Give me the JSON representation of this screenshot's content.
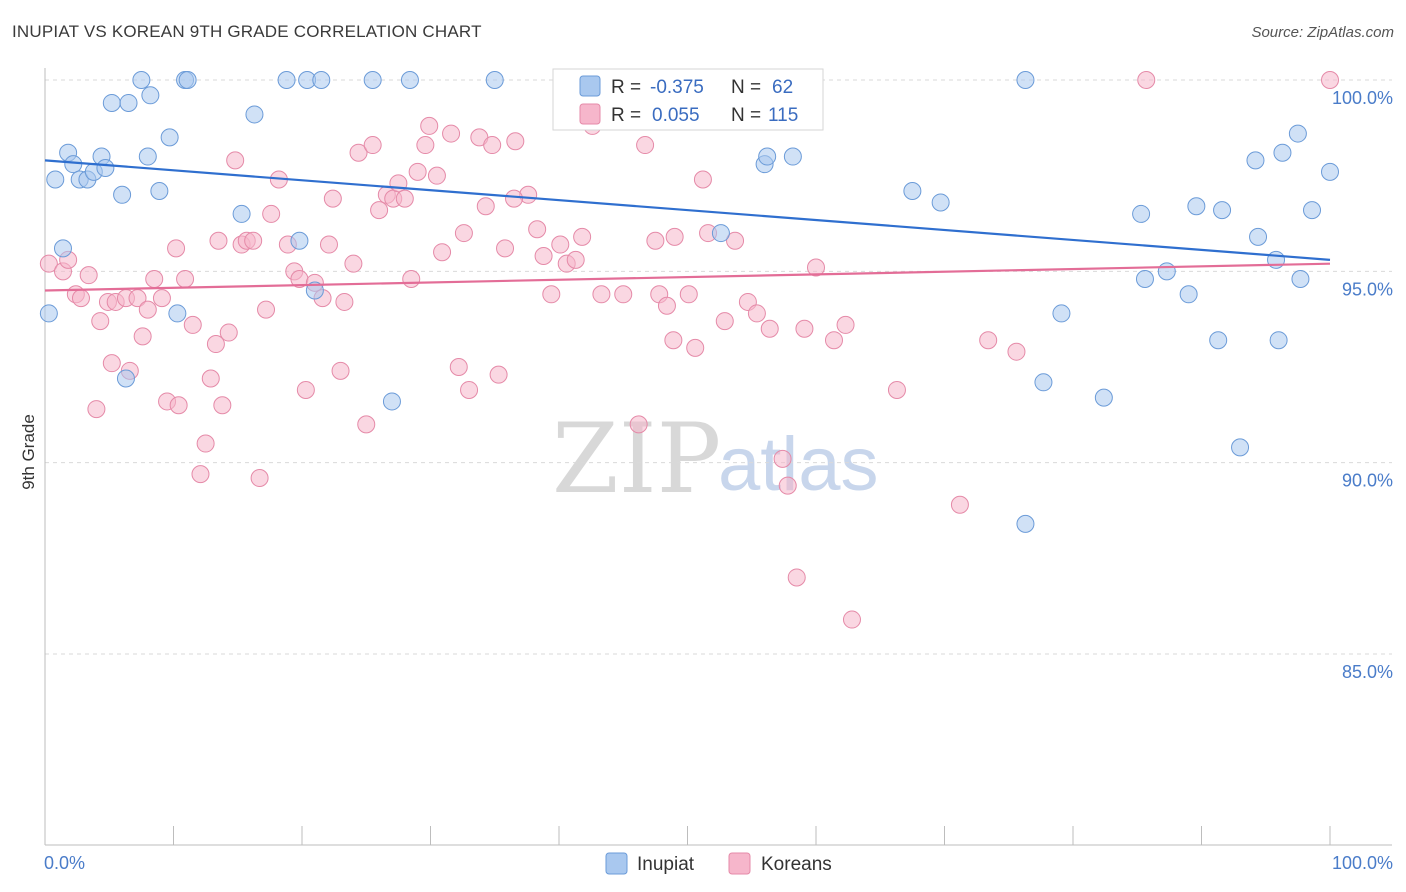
{
  "title": "INUPIAT VS KOREAN 9TH GRADE CORRELATION CHART",
  "source": "Source: ZipAtlas.com",
  "watermark": {
    "zip": "ZIP",
    "atlas": "atlas"
  },
  "legend_box": {
    "rows": [
      {
        "series": "Inupiat",
        "r_label": "R =",
        "r_value": "-0.375",
        "n_label": "N =",
        "n_value": "62",
        "color": "#a9c8ef"
      },
      {
        "series": "Koreans",
        "r_label": "R =",
        "r_value": "0.055",
        "n_label": "N =",
        "n_value": "115",
        "color": "#f6b6cb"
      }
    ]
  },
  "colors": {
    "inupiat_fill": "#a9c8ef",
    "inupiat_stroke": "#6b9bd8",
    "inupiat_line": "#2f6fcf",
    "koreans_fill": "#f6b6cb",
    "koreans_stroke": "#e58aa8",
    "koreans_line": "#e36d97",
    "grid": "#d9d9d9",
    "tick_label": "#4a7cc9"
  },
  "chart_data": {
    "type": "scatter",
    "title": "INUPIAT VS KOREAN 9TH GRADE CORRELATION CHART",
    "xlabel": "",
    "ylabel": "9th Grade",
    "xlim": [
      0,
      100
    ],
    "ylim": [
      80.5,
      100.9
    ],
    "x_tick_labels": [
      {
        "value": 0,
        "label": "0.0%"
      },
      {
        "value": 100,
        "label": "100.0%"
      }
    ],
    "y_tick_labels": [
      {
        "value": 100,
        "label": "100.0%"
      },
      {
        "value": 95,
        "label": "95.0%"
      },
      {
        "value": 90,
        "label": "90.0%"
      },
      {
        "value": 85,
        "label": "85.0%"
      }
    ],
    "grid": true,
    "legend_position": "bottom",
    "series": [
      {
        "name": "Inupiat",
        "trend": {
          "x": [
            0,
            100
          ],
          "y": [
            97.9,
            95.3
          ]
        },
        "points": [
          [
            0.3,
            93.9
          ],
          [
            0.8,
            97.4
          ],
          [
            1.4,
            95.6
          ],
          [
            1.8,
            98.1
          ],
          [
            2.2,
            97.8
          ],
          [
            2.7,
            97.4
          ],
          [
            3.3,
            97.4
          ],
          [
            3.8,
            97.6
          ],
          [
            4.4,
            98.0
          ],
          [
            4.7,
            97.7
          ],
          [
            5.2,
            99.4
          ],
          [
            6.0,
            97.0
          ],
          [
            6.5,
            99.4
          ],
          [
            7.5,
            100.0
          ],
          [
            8.0,
            98.0
          ],
          [
            8.2,
            99.6
          ],
          [
            8.9,
            97.1
          ],
          [
            9.7,
            98.5
          ],
          [
            10.3,
            93.9
          ],
          [
            10.9,
            100.0
          ],
          [
            11.1,
            100.0
          ],
          [
            6.3,
            92.2
          ],
          [
            16.3,
            99.1
          ],
          [
            15.3,
            96.5
          ],
          [
            18.8,
            100.0
          ],
          [
            19.8,
            95.8
          ],
          [
            20.4,
            100.0
          ],
          [
            21.5,
            100.0
          ],
          [
            21.0,
            94.5
          ],
          [
            25.5,
            100.0
          ],
          [
            27.0,
            91.6
          ],
          [
            28.4,
            100.0
          ],
          [
            35.0,
            100.0
          ],
          [
            47.5,
            100.0
          ],
          [
            52.6,
            96.0
          ],
          [
            56.0,
            97.8
          ],
          [
            56.2,
            98.0
          ],
          [
            58.2,
            98.0
          ],
          [
            67.5,
            97.1
          ],
          [
            69.7,
            96.8
          ],
          [
            76.3,
            88.4
          ],
          [
            76.3,
            100.0
          ],
          [
            77.7,
            92.1
          ],
          [
            79.1,
            93.9
          ],
          [
            82.4,
            91.7
          ],
          [
            85.3,
            96.5
          ],
          [
            85.6,
            94.8
          ],
          [
            87.3,
            95.0
          ],
          [
            89.0,
            94.4
          ],
          [
            89.6,
            96.7
          ],
          [
            91.3,
            93.2
          ],
          [
            91.6,
            96.6
          ],
          [
            93.0,
            90.4
          ],
          [
            94.4,
            95.9
          ],
          [
            96.3,
            98.1
          ],
          [
            94.2,
            97.9
          ],
          [
            95.8,
            95.3
          ],
          [
            96.0,
            93.2
          ],
          [
            97.5,
            98.6
          ],
          [
            97.7,
            94.8
          ],
          [
            98.6,
            96.6
          ],
          [
            100.0,
            97.6
          ]
        ]
      },
      {
        "name": "Koreans",
        "trend": {
          "x": [
            0,
            100
          ],
          "y": [
            94.5,
            95.2
          ]
        },
        "points": [
          [
            0.3,
            95.2
          ],
          [
            1.4,
            95.0
          ],
          [
            1.8,
            95.3
          ],
          [
            2.4,
            94.4
          ],
          [
            2.8,
            94.3
          ],
          [
            3.4,
            94.9
          ],
          [
            4.0,
            91.4
          ],
          [
            4.3,
            93.7
          ],
          [
            4.9,
            94.2
          ],
          [
            5.2,
            92.6
          ],
          [
            5.5,
            94.2
          ],
          [
            6.3,
            94.3
          ],
          [
            6.6,
            92.4
          ],
          [
            7.2,
            94.3
          ],
          [
            7.6,
            93.3
          ],
          [
            8.0,
            94.0
          ],
          [
            8.5,
            94.8
          ],
          [
            9.1,
            94.3
          ],
          [
            9.5,
            91.6
          ],
          [
            10.2,
            95.6
          ],
          [
            10.4,
            91.5
          ],
          [
            10.9,
            94.8
          ],
          [
            11.5,
            93.6
          ],
          [
            12.1,
            89.7
          ],
          [
            12.5,
            90.5
          ],
          [
            12.9,
            92.2
          ],
          [
            13.3,
            93.1
          ],
          [
            13.8,
            91.5
          ],
          [
            14.3,
            93.4
          ],
          [
            14.8,
            97.9
          ],
          [
            15.3,
            95.7
          ],
          [
            15.7,
            95.8
          ],
          [
            16.2,
            95.8
          ],
          [
            16.7,
            89.6
          ],
          [
            17.2,
            94.0
          ],
          [
            17.6,
            96.5
          ],
          [
            18.2,
            97.4
          ],
          [
            18.9,
            95.7
          ],
          [
            19.4,
            95.0
          ],
          [
            19.8,
            94.8
          ],
          [
            20.3,
            91.9
          ],
          [
            21.0,
            94.7
          ],
          [
            21.6,
            94.3
          ],
          [
            22.4,
            96.9
          ],
          [
            23.0,
            92.4
          ],
          [
            23.3,
            94.2
          ],
          [
            24.0,
            95.2
          ],
          [
            24.4,
            98.1
          ],
          [
            25.0,
            91.0
          ],
          [
            25.5,
            98.3
          ],
          [
            26.0,
            96.6
          ],
          [
            26.6,
            97.0
          ],
          [
            27.1,
            96.9
          ],
          [
            27.5,
            97.3
          ],
          [
            28.0,
            96.9
          ],
          [
            28.5,
            94.8
          ],
          [
            29.0,
            97.6
          ],
          [
            29.6,
            98.3
          ],
          [
            29.9,
            98.8
          ],
          [
            30.5,
            97.5
          ],
          [
            30.9,
            95.5
          ],
          [
            31.6,
            98.6
          ],
          [
            32.2,
            92.5
          ],
          [
            32.6,
            96.0
          ],
          [
            33.0,
            91.9
          ],
          [
            33.8,
            98.5
          ],
          [
            34.3,
            96.7
          ],
          [
            34.8,
            98.3
          ],
          [
            35.3,
            92.3
          ],
          [
            35.8,
            95.6
          ],
          [
            36.6,
            98.4
          ],
          [
            37.6,
            97.0
          ],
          [
            38.3,
            96.1
          ],
          [
            38.8,
            95.4
          ],
          [
            39.4,
            94.4
          ],
          [
            40.1,
            95.7
          ],
          [
            40.6,
            95.2
          ],
          [
            41.3,
            95.3
          ],
          [
            41.8,
            95.9
          ],
          [
            42.6,
            98.8
          ],
          [
            43.3,
            94.4
          ],
          [
            45.0,
            94.4
          ],
          [
            47.5,
            95.8
          ],
          [
            47.8,
            94.4
          ],
          [
            48.4,
            94.1
          ],
          [
            48.9,
            93.2
          ],
          [
            50.1,
            94.4
          ],
          [
            50.6,
            93.0
          ],
          [
            51.2,
            97.4
          ],
          [
            51.6,
            96.0
          ],
          [
            52.9,
            93.7
          ],
          [
            53.7,
            95.8
          ],
          [
            54.7,
            94.2
          ],
          [
            55.4,
            93.9
          ],
          [
            56.4,
            93.5
          ],
          [
            57.4,
            90.1
          ],
          [
            57.8,
            89.4
          ],
          [
            58.5,
            87.0
          ],
          [
            59.1,
            93.5
          ],
          [
            60.0,
            95.1
          ],
          [
            61.4,
            93.2
          ],
          [
            62.3,
            93.6
          ],
          [
            62.8,
            85.9
          ],
          [
            66.3,
            91.9
          ],
          [
            71.2,
            88.9
          ],
          [
            73.4,
            93.2
          ],
          [
            75.6,
            92.9
          ],
          [
            41.5,
            100.0
          ],
          [
            46.7,
            98.3
          ],
          [
            46.2,
            91.0
          ],
          [
            54.5,
            100.0
          ],
          [
            85.7,
            100.0
          ],
          [
            100.0,
            100.0
          ],
          [
            22.1,
            95.7
          ],
          [
            13.5,
            95.8
          ],
          [
            36.5,
            96.9
          ],
          [
            49.0,
            95.9
          ]
        ]
      }
    ]
  },
  "bottom_legend": [
    {
      "label": "Inupiat",
      "color": "#a9c8ef"
    },
    {
      "label": "Koreans",
      "color": "#f6b6cb"
    }
  ]
}
